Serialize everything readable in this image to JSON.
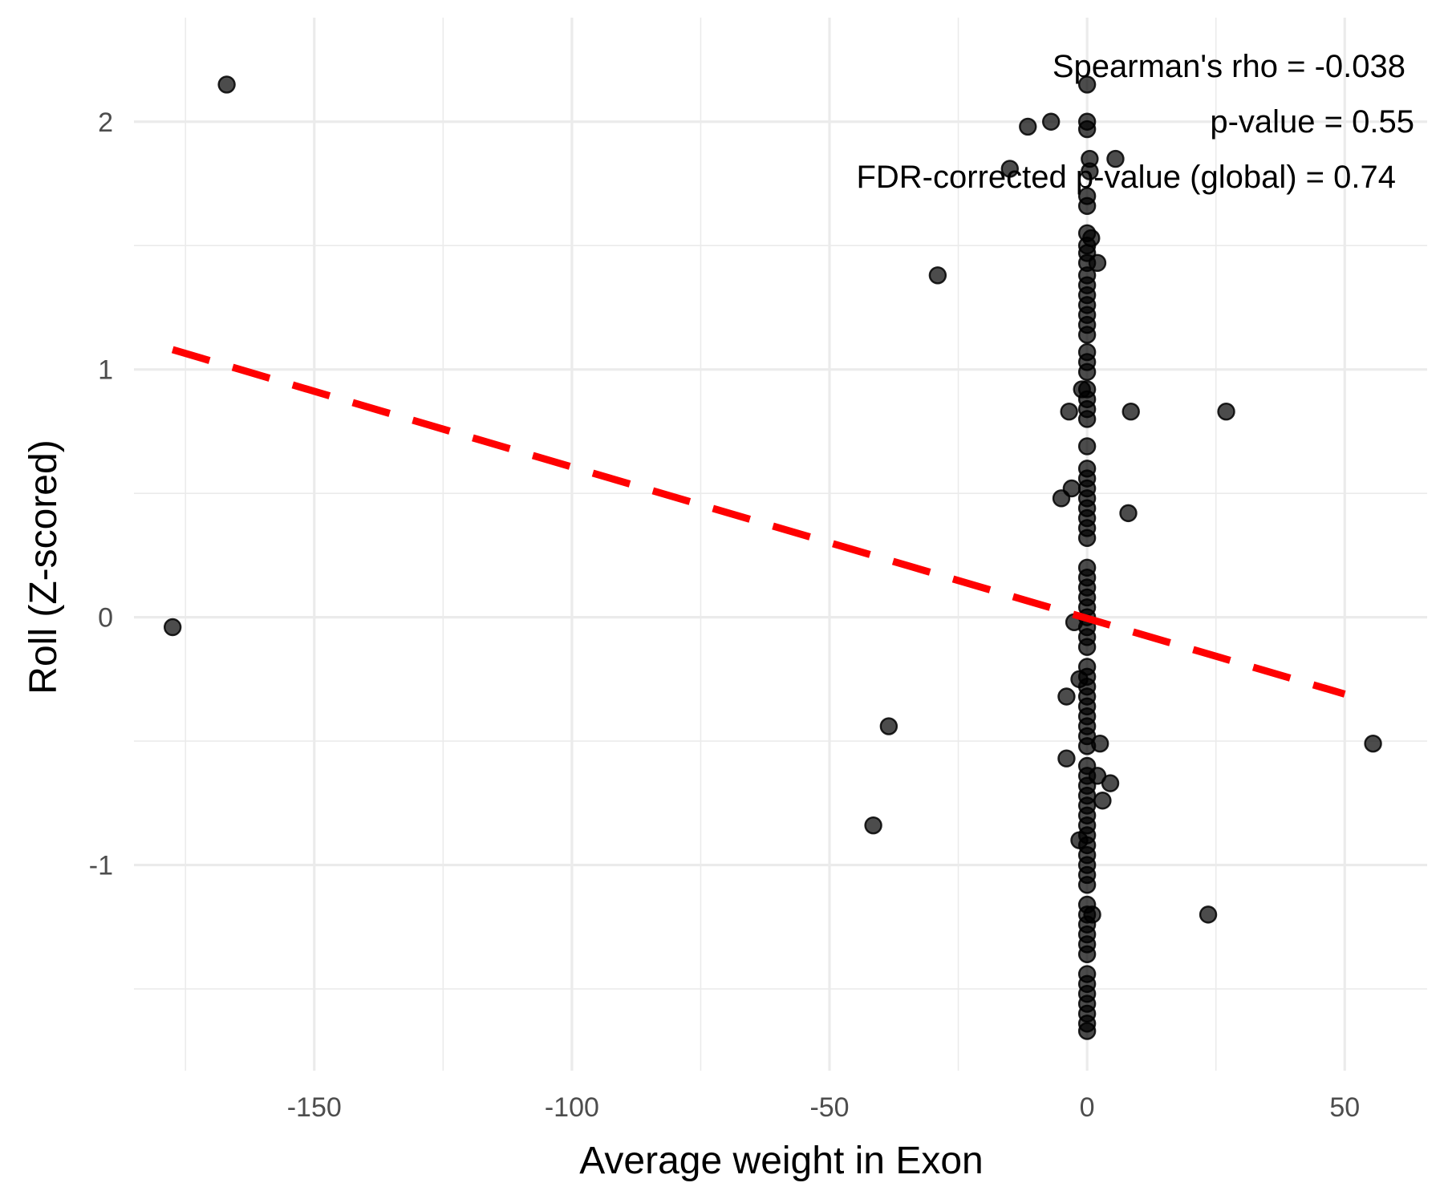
{
  "chart_data": {
    "type": "scatter",
    "title": "",
    "xlabel": "Average weight in Exon",
    "ylabel": "Roll (Z-scored)",
    "xlim": [
      -185,
      66
    ],
    "ylim": [
      -1.83,
      2.42
    ],
    "x_ticks": [
      -150,
      -100,
      -50,
      0,
      50
    ],
    "y_ticks": [
      -1,
      0,
      1,
      2
    ],
    "x_tick_labels": [
      "-150",
      "-100",
      "-50",
      "0",
      "50"
    ],
    "y_tick_labels": [
      "-1",
      "0",
      "1",
      "2"
    ],
    "grid": true,
    "annotations": [
      "Spearman's rho = -0.038",
      "p-value = 0.55",
      "FDR-corrected p-value (global) = 0.74"
    ],
    "trend_line": {
      "style": "dashed",
      "color": "#ff0000",
      "x": [
        -177.5,
        50
      ],
      "y": [
        1.08,
        -0.31
      ]
    },
    "point_color": "#000000",
    "points": [
      {
        "x": -167,
        "y": 2.15
      },
      {
        "x": -177.5,
        "y": -0.04
      },
      {
        "x": -29,
        "y": 1.38
      },
      {
        "x": -38.5,
        "y": -0.44
      },
      {
        "x": -41.5,
        "y": -0.84
      },
      {
        "x": -15,
        "y": 1.81
      },
      {
        "x": -11.5,
        "y": 1.98
      },
      {
        "x": -7,
        "y": 2.0
      },
      {
        "x": 5.5,
        "y": 1.85
      },
      {
        "x": 2,
        "y": 1.43
      },
      {
        "x": -3.5,
        "y": 0.83
      },
      {
        "x": 8.5,
        "y": 0.83
      },
      {
        "x": 27,
        "y": 0.83
      },
      {
        "x": -5,
        "y": 0.48
      },
      {
        "x": -3,
        "y": 0.52
      },
      {
        "x": 8,
        "y": 0.42
      },
      {
        "x": -2.5,
        "y": -0.02
      },
      {
        "x": -4,
        "y": -0.32
      },
      {
        "x": -4,
        "y": -0.57
      },
      {
        "x": 2.5,
        "y": -0.51
      },
      {
        "x": 2,
        "y": -0.64
      },
      {
        "x": 4.5,
        "y": -0.67
      },
      {
        "x": 3,
        "y": -0.74
      },
      {
        "x": 1,
        "y": -1.2
      },
      {
        "x": 23.5,
        "y": -1.2
      },
      {
        "x": 55.5,
        "y": -0.51
      },
      {
        "x": -1,
        "y": 0.92
      },
      {
        "x": -1.5,
        "y": -0.25
      },
      {
        "x": -1.5,
        "y": -0.9
      },
      {
        "x": 0,
        "y": 2.15
      },
      {
        "x": 0,
        "y": 2.0
      },
      {
        "x": 0,
        "y": 1.97
      },
      {
        "x": 0.5,
        "y": 1.85
      },
      {
        "x": 0.5,
        "y": 1.8
      },
      {
        "x": 0,
        "y": 1.7
      },
      {
        "x": 0,
        "y": 1.66
      },
      {
        "x": 0,
        "y": 1.55
      },
      {
        "x": 0.8,
        "y": 1.53
      },
      {
        "x": 0,
        "y": 1.5
      },
      {
        "x": 0,
        "y": 1.47
      },
      {
        "x": 0,
        "y": 1.43
      },
      {
        "x": 0,
        "y": 1.38
      },
      {
        "x": 0,
        "y": 1.34
      },
      {
        "x": 0,
        "y": 1.3
      },
      {
        "x": 0,
        "y": 1.26
      },
      {
        "x": 0,
        "y": 1.22
      },
      {
        "x": 0,
        "y": 1.18
      },
      {
        "x": 0,
        "y": 1.14
      },
      {
        "x": 0,
        "y": 1.07
      },
      {
        "x": 0,
        "y": 1.03
      },
      {
        "x": 0,
        "y": 0.99
      },
      {
        "x": 0,
        "y": 0.92
      },
      {
        "x": 0,
        "y": 0.88
      },
      {
        "x": 0,
        "y": 0.84
      },
      {
        "x": 0,
        "y": 0.8
      },
      {
        "x": 0,
        "y": 0.69
      },
      {
        "x": 0,
        "y": 0.6
      },
      {
        "x": 0,
        "y": 0.56
      },
      {
        "x": 0,
        "y": 0.52
      },
      {
        "x": 0,
        "y": 0.48
      },
      {
        "x": 0,
        "y": 0.44
      },
      {
        "x": 0,
        "y": 0.4
      },
      {
        "x": 0,
        "y": 0.36
      },
      {
        "x": 0,
        "y": 0.32
      },
      {
        "x": 0,
        "y": 0.2
      },
      {
        "x": 0,
        "y": 0.16
      },
      {
        "x": 0,
        "y": 0.12
      },
      {
        "x": 0,
        "y": 0.08
      },
      {
        "x": 0,
        "y": 0.04
      },
      {
        "x": 0,
        "y": 0.0
      },
      {
        "x": 0,
        "y": -0.04
      },
      {
        "x": 0,
        "y": -0.08
      },
      {
        "x": 0,
        "y": -0.12
      },
      {
        "x": 0,
        "y": -0.2
      },
      {
        "x": 0,
        "y": -0.24
      },
      {
        "x": 0,
        "y": -0.28
      },
      {
        "x": 0,
        "y": -0.32
      },
      {
        "x": 0,
        "y": -0.36
      },
      {
        "x": 0,
        "y": -0.4
      },
      {
        "x": 0,
        "y": -0.44
      },
      {
        "x": 0,
        "y": -0.48
      },
      {
        "x": 0,
        "y": -0.52
      },
      {
        "x": 0,
        "y": -0.6
      },
      {
        "x": 0,
        "y": -0.64
      },
      {
        "x": 0,
        "y": -0.68
      },
      {
        "x": 0,
        "y": -0.72
      },
      {
        "x": 0,
        "y": -0.76
      },
      {
        "x": 0,
        "y": -0.8
      },
      {
        "x": 0,
        "y": -0.84
      },
      {
        "x": 0,
        "y": -0.88
      },
      {
        "x": 0,
        "y": -0.92
      },
      {
        "x": 0,
        "y": -0.96
      },
      {
        "x": 0,
        "y": -1.0
      },
      {
        "x": 0,
        "y": -1.04
      },
      {
        "x": 0,
        "y": -1.08
      },
      {
        "x": 0,
        "y": -1.16
      },
      {
        "x": 0,
        "y": -1.2
      },
      {
        "x": 0,
        "y": -1.24
      },
      {
        "x": 0,
        "y": -1.28
      },
      {
        "x": 0,
        "y": -1.32
      },
      {
        "x": 0,
        "y": -1.36
      },
      {
        "x": 0,
        "y": -1.44
      },
      {
        "x": 0,
        "y": -1.48
      },
      {
        "x": 0,
        "y": -1.52
      },
      {
        "x": 0,
        "y": -1.56
      },
      {
        "x": 0,
        "y": -1.6
      },
      {
        "x": 0,
        "y": -1.64
      },
      {
        "x": 0,
        "y": -1.67
      }
    ]
  }
}
